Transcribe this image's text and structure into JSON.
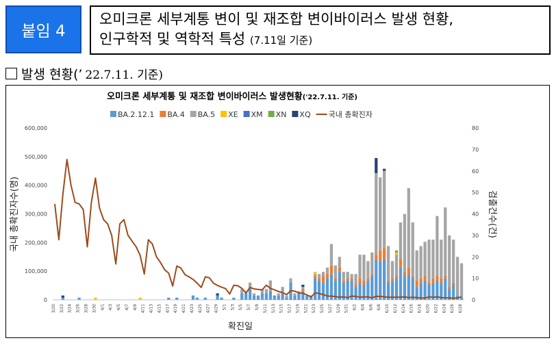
{
  "header": {
    "badge": "붙임 4",
    "title_line1": "오미크론 세부계통 변이 및 재조합 변이바이러스 발생 현황,",
    "title_line2": "인구학적 및 역학적 특성",
    "title_line2_small": "(7.11일 기준)"
  },
  "section": {
    "label": "발생 현황(’",
    "date": "22.7.11. 기준)"
  },
  "chart_data": {
    "type": "bar",
    "title": "오미크론 세부계통 및 재조합 변이바이러스 발생현황",
    "title_suffix": "('22.7.11. 기준)",
    "xlabel": "확진일",
    "ylabel": "국내 총확진자수(명)",
    "y2label": "검출건수(건)",
    "ylim": [
      0,
      600000
    ],
    "y2lim": [
      0,
      80
    ],
    "yticks": [
      "0",
      "100,000",
      "200,000",
      "300,000",
      "400,000",
      "500,000",
      "600,000"
    ],
    "y2ticks": [
      "0",
      "10",
      "20",
      "30",
      "40",
      "50",
      "60",
      "70",
      "80"
    ],
    "grid": false,
    "legend_position": "top",
    "colors": {
      "BA.2.12.1": "#5b9bd5",
      "BA.4": "#ed7d31",
      "BA.5": "#a5a5a5",
      "XE": "#ffc000",
      "XM": "#4472c4",
      "XN": "#70ad47",
      "XQ": "#264478",
      "line": "#9c4a1a"
    },
    "dates": [
      "3/20",
      "3/21",
      "3/22",
      "3/23",
      "3/24",
      "3/25",
      "3/26",
      "3/27",
      "3/28",
      "3/29",
      "3/30",
      "3/31",
      "4/1",
      "4/2",
      "4/3",
      "4/4",
      "4/5",
      "4/6",
      "4/7",
      "4/8",
      "4/9",
      "4/10",
      "4/11",
      "4/12",
      "4/13",
      "4/14",
      "4/15",
      "4/16",
      "4/17",
      "4/18",
      "4/19",
      "4/20",
      "4/21",
      "4/22",
      "4/23",
      "4/24",
      "4/25",
      "4/26",
      "4/27",
      "4/28",
      "4/29",
      "4/30",
      "5/1",
      "5/2",
      "5/3",
      "5/4",
      "5/5",
      "5/6",
      "5/7",
      "5/8",
      "5/9",
      "5/10",
      "5/11",
      "5/12",
      "5/13",
      "5/14",
      "5/15",
      "5/16",
      "5/17",
      "5/18",
      "5/19",
      "5/20",
      "5/21",
      "5/22",
      "5/23",
      "5/24",
      "5/25",
      "5/26",
      "5/27",
      "5/28",
      "5/29",
      "5/30",
      "5/31",
      "6/1",
      "6/2",
      "6/3",
      "6/4",
      "6/5",
      "6/6",
      "6/7",
      "6/8",
      "6/9",
      "6/10",
      "6/11",
      "6/12",
      "6/13",
      "6/14",
      "6/15",
      "6/16",
      "6/17",
      "6/18",
      "6/19",
      "6/20",
      "6/21",
      "6/22",
      "6/23",
      "6/24",
      "6/25",
      "6/26",
      "6/27",
      "6/28"
    ],
    "x_tick_labels": [
      "3/20",
      "3/22",
      "3/24",
      "3/26",
      "3/28",
      "3/30",
      "4/1",
      "4/3",
      "4/5",
      "4/7",
      "4/9",
      "4/11",
      "4/13",
      "4/15",
      "4/17",
      "4/19",
      "4/21",
      "4/23",
      "4/25",
      "4/27",
      "4/29",
      "5/1",
      "5/3",
      "5/5",
      "5/7",
      "5/9",
      "5/11",
      "5/13",
      "5/15",
      "5/17",
      "5/19",
      "5/21",
      "5/23",
      "5/25",
      "5/27",
      "5/29",
      "5/31",
      "6/2",
      "6/4",
      "6/6",
      "6/8",
      "6/10",
      "6/12",
      "6/14",
      "6/16",
      "6/18",
      "6/20",
      "6/22",
      "6/24",
      "6/26",
      "6/28"
    ],
    "series": [
      {
        "name": "BA.2.12.1",
        "axis": "right",
        "values": [
          0,
          0,
          1,
          0,
          0,
          0,
          1,
          0,
          0,
          0,
          0,
          0,
          0,
          0,
          0,
          0,
          0,
          0,
          0,
          0,
          0,
          0,
          0,
          0,
          0,
          0,
          0,
          0,
          1,
          0,
          1,
          0,
          0,
          0,
          2,
          1,
          0,
          1,
          0,
          0,
          2,
          1,
          0,
          0,
          1,
          0,
          3,
          3,
          5,
          2,
          2,
          3,
          3,
          4,
          2,
          2,
          3,
          1,
          8,
          2,
          3,
          4,
          2,
          2,
          10,
          9,
          8,
          10,
          12,
          9,
          13,
          8,
          9,
          9,
          6,
          8,
          7,
          9,
          11,
          19,
          18,
          19,
          8,
          9,
          10,
          15,
          11,
          12,
          10,
          6,
          8,
          9,
          7,
          8,
          9,
          8,
          10,
          5,
          7,
          2,
          1
        ]
      },
      {
        "name": "BA.4",
        "axis": "right",
        "values": [
          0,
          0,
          0,
          0,
          0,
          0,
          0,
          0,
          0,
          0,
          0,
          0,
          0,
          0,
          0,
          0,
          0,
          0,
          0,
          0,
          0,
          0,
          0,
          0,
          0,
          0,
          0,
          0,
          0,
          0,
          0,
          0,
          0,
          0,
          0,
          0,
          0,
          0,
          0,
          0,
          0,
          0,
          0,
          0,
          0,
          0,
          0,
          0,
          0,
          0,
          0,
          0,
          0,
          0,
          0,
          0,
          0,
          0,
          0,
          0,
          0,
          1,
          0,
          0,
          1,
          1,
          3,
          2,
          4,
          1,
          2,
          1,
          1,
          1,
          1,
          2,
          2,
          1,
          1,
          2,
          5,
          5,
          1,
          1,
          1,
          4,
          2,
          3,
          1,
          3,
          2,
          2,
          1,
          2,
          2,
          2,
          1,
          1,
          1,
          0,
          0
        ]
      },
      {
        "name": "BA.5",
        "axis": "right",
        "values": [
          0,
          0,
          0,
          0,
          0,
          0,
          0,
          0,
          0,
          0,
          0,
          0,
          0,
          0,
          0,
          0,
          0,
          0,
          0,
          0,
          0,
          0,
          0,
          0,
          0,
          0,
          0,
          0,
          0,
          0,
          0,
          0,
          0,
          0,
          0,
          0,
          0,
          0,
          0,
          0,
          0,
          0,
          0,
          0,
          0,
          0,
          2,
          1,
          3,
          1,
          0,
          2,
          2,
          5,
          0,
          1,
          3,
          1,
          2,
          1,
          1,
          1,
          0,
          0,
          1,
          2,
          2,
          3,
          10,
          6,
          5,
          4,
          3,
          2,
          5,
          11,
          12,
          8,
          10,
          38,
          34,
          36,
          16,
          8,
          10,
          17,
          27,
          37,
          25,
          14,
          15,
          16,
          20,
          18,
          28,
          18,
          32,
          24,
          20,
          18,
          16
        ]
      },
      {
        "name": "XE",
        "axis": "right",
        "values": [
          0,
          0,
          0,
          0,
          0,
          0,
          0,
          0,
          0,
          0,
          1,
          0,
          0,
          0,
          0,
          0,
          0,
          0,
          0,
          0,
          0,
          1,
          0,
          0,
          0,
          0,
          0,
          0,
          0,
          0,
          0,
          0,
          0,
          0,
          0,
          0,
          0,
          0,
          0,
          0,
          0,
          0,
          0,
          0,
          0,
          0,
          0,
          0,
          0,
          0,
          0,
          0,
          0,
          0,
          0,
          0,
          0,
          0,
          0,
          0,
          0,
          0,
          0,
          0,
          1,
          0,
          0,
          0,
          0,
          0,
          0,
          0,
          0,
          0,
          0,
          0,
          0,
          0,
          0,
          0,
          0,
          0,
          0,
          0,
          1,
          0,
          0,
          0,
          0,
          0,
          0,
          0,
          0,
          0,
          0,
          0,
          0,
          0,
          0,
          0,
          0
        ]
      },
      {
        "name": "XM",
        "axis": "right",
        "values": [
          0,
          0,
          0,
          0,
          0,
          0,
          0,
          0,
          0,
          0,
          0,
          0,
          0,
          0,
          0,
          0,
          0,
          0,
          0,
          0,
          0,
          0,
          0,
          0,
          0,
          0,
          0,
          0,
          0,
          0,
          0,
          0,
          0,
          0,
          0,
          0,
          0,
          0,
          0,
          0,
          0,
          0,
          0,
          0,
          0,
          0,
          0,
          0,
          0,
          0,
          0,
          0,
          0,
          0,
          0,
          0,
          0,
          0,
          0,
          0,
          0,
          0,
          0,
          0,
          0,
          0,
          0,
          0,
          0,
          0,
          0,
          0,
          0,
          0,
          0,
          0,
          0,
          0,
          0,
          0,
          0,
          0,
          0,
          0,
          0,
          0,
          0,
          0,
          0,
          0,
          0,
          0,
          0,
          0,
          0,
          0,
          0,
          0,
          0,
          0,
          0
        ]
      },
      {
        "name": "XN",
        "axis": "right",
        "values": [
          0,
          0,
          0,
          0,
          0,
          0,
          0,
          0,
          0,
          0,
          0,
          0,
          0,
          0,
          0,
          0,
          0,
          0,
          0,
          0,
          0,
          0,
          0,
          0,
          0,
          0,
          0,
          0,
          0,
          0,
          0,
          0,
          0,
          0,
          0,
          0,
          0,
          0,
          0,
          0,
          0,
          0,
          0,
          0,
          0,
          0,
          0,
          0,
          0,
          0,
          0,
          0,
          0,
          0,
          0,
          0,
          0,
          0,
          0,
          0,
          0,
          0,
          0,
          0,
          0,
          0,
          0,
          0,
          0,
          0,
          0,
          0,
          0,
          0,
          0,
          0,
          0,
          0,
          0,
          0,
          0,
          0,
          0,
          0,
          1,
          0,
          0,
          0,
          0,
          0,
          0,
          0,
          0,
          0,
          0,
          0,
          0,
          0,
          0,
          0,
          0
        ]
      },
      {
        "name": "XQ",
        "axis": "right",
        "values": [
          0,
          0,
          1,
          0,
          0,
          0,
          0,
          0,
          0,
          0,
          0,
          0,
          0,
          0,
          0,
          0,
          0,
          0,
          0,
          0,
          0,
          0,
          0,
          0,
          0,
          0,
          0,
          0,
          0,
          0,
          0,
          0,
          0,
          0,
          0,
          0,
          0,
          0,
          0,
          0,
          1,
          0,
          0,
          0,
          0,
          0,
          0,
          0,
          0,
          0,
          0,
          0,
          0,
          0,
          0,
          0,
          0,
          0,
          0,
          0,
          0,
          1,
          0,
          0,
          0,
          0,
          0,
          0,
          0,
          0,
          0,
          0,
          0,
          0,
          0,
          0,
          0,
          0,
          0,
          7,
          0,
          1,
          0,
          0,
          0,
          0,
          0,
          0,
          0,
          0,
          0,
          0,
          0,
          0,
          0,
          0,
          0,
          0,
          0,
          0,
          0
        ]
      },
      {
        "name": "국내 총확진자",
        "axis": "left",
        "kind": "line",
        "values": [
          335000,
          210000,
          370000,
          490000,
          400000,
          340000,
          335000,
          315000,
          185000,
          340000,
          425000,
          320000,
          280000,
          265000,
          225000,
          125000,
          265000,
          280000,
          225000,
          205000,
          185000,
          155000,
          90000,
          210000,
          195000,
          150000,
          130000,
          105000,
          93000,
          48000,
          118000,
          111000,
          88000,
          80000,
          71000,
          58000,
          43000,
          80000,
          77000,
          58000,
          50000,
          44000,
          39000,
          20000,
          51000,
          49000,
          40000,
          24000,
          43000,
          38000,
          36000,
          35000,
          51000,
          40000,
          35000,
          29000,
          25000,
          18000,
          32000,
          30000,
          24000,
          23000,
          17000,
          10000,
          24000,
          22000,
          18000,
          13000,
          13000,
          11000,
          9000,
          10000,
          7500,
          13000,
          12000,
          9000,
          10000,
          10000,
          7000,
          12000,
          12000,
          10000,
          9000,
          9000,
          9000,
          9000,
          10000,
          8000,
          9000,
          7500,
          6000,
          6000,
          10000,
          9000,
          10000,
          8000,
          7000,
          6500,
          5000,
          7000,
          10000
        ]
      }
    ]
  }
}
